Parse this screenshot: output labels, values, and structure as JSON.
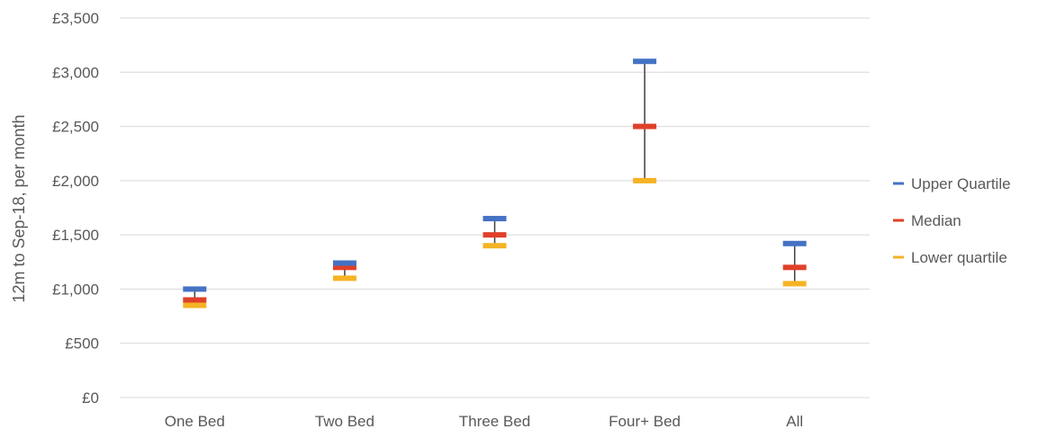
{
  "chart_data": {
    "type": "scatter",
    "title": "",
    "xlabel": "",
    "ylabel": "12m to Sep-18, per month",
    "ylim": [
      0,
      3500
    ],
    "y_ticks": [
      0,
      500,
      1000,
      1500,
      2000,
      2500,
      3000,
      3500
    ],
    "y_tick_labels": [
      "£0",
      "£500",
      "£1,000",
      "£1,500",
      "£2,000",
      "£2,500",
      "£3,000",
      "£3,500"
    ],
    "grid": true,
    "legend_position": "right",
    "categories": [
      "One Bed",
      "Two Bed",
      "Three Bed",
      "Four+ Bed",
      "All"
    ],
    "series": [
      {
        "name": "Upper Quartile",
        "color": "#4472C4",
        "values": [
          1000,
          1240,
          1650,
          3100,
          1420
        ]
      },
      {
        "name": "Median",
        "color": "#E0402A",
        "values": [
          900,
          1200,
          1500,
          2500,
          1200
        ]
      },
      {
        "name": "Lower quartile",
        "color": "#F5B324",
        "values": [
          850,
          1100,
          1400,
          2000,
          1050
        ]
      }
    ],
    "range_line_color": "#404040",
    "gridline_color": "#D9D9D9"
  }
}
